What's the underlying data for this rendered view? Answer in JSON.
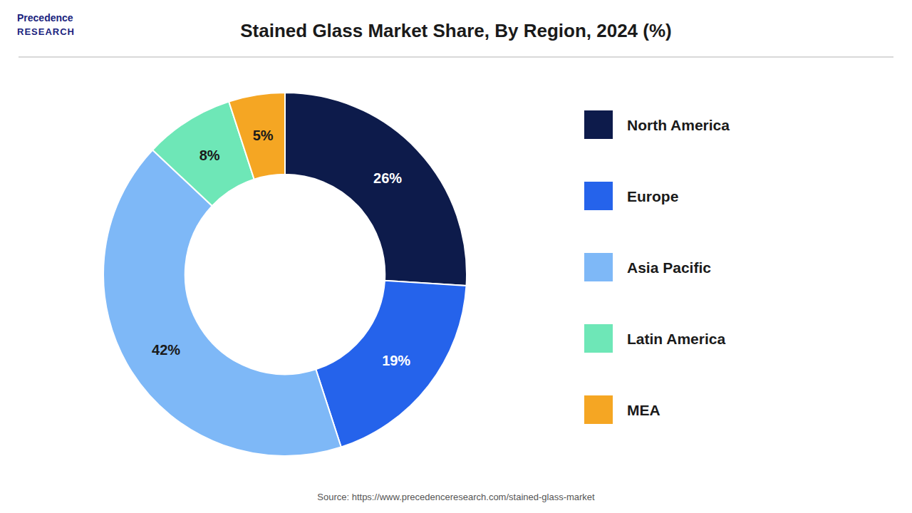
{
  "chart_data": {
    "type": "donut",
    "title": "Stained Glass Market Share, By Region, 2024 (%)",
    "categories": [
      "North America",
      "Europe",
      "Asia Pacific",
      "Latin America",
      "MEA"
    ],
    "values": [
      26,
      19,
      42,
      8,
      5
    ],
    "value_labels": [
      "26%",
      "19%",
      "42%",
      "8%",
      "5%"
    ],
    "colors": [
      "#0d1b4b",
      "#2563eb",
      "#7eb8f7",
      "#6ee7b7",
      "#f5a623"
    ],
    "data_labels": true,
    "legend": "right",
    "annotations": [
      "Precedence",
      "RESEARCH",
      "Source: https://www.precedenceresearch.com/stained-glass-market"
    ]
  }
}
